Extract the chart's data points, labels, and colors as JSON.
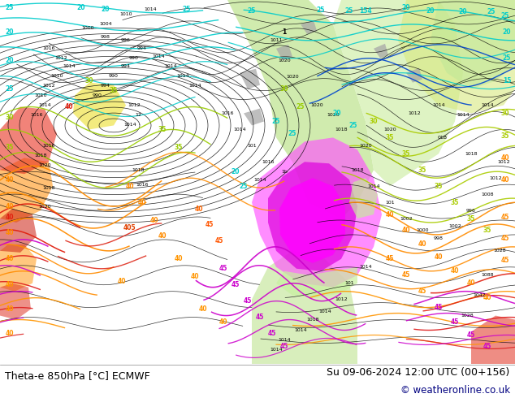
{
  "title_left": "Theta-e 850hPa [°C] ECMWF",
  "title_right": "Su 09-06-2024 12:00 UTC (00+156)",
  "copyright": "© weatheronline.co.uk",
  "bg_color": "#ffffff",
  "map_bg": "#f0f0f0",
  "figsize": [
    6.34,
    4.9
  ],
  "dpi": 100,
  "bottom_bar_color": "#ffffff",
  "title_fontsize": 9.0,
  "copyright_fontsize": 8.5,
  "copyright_color": "#000080"
}
